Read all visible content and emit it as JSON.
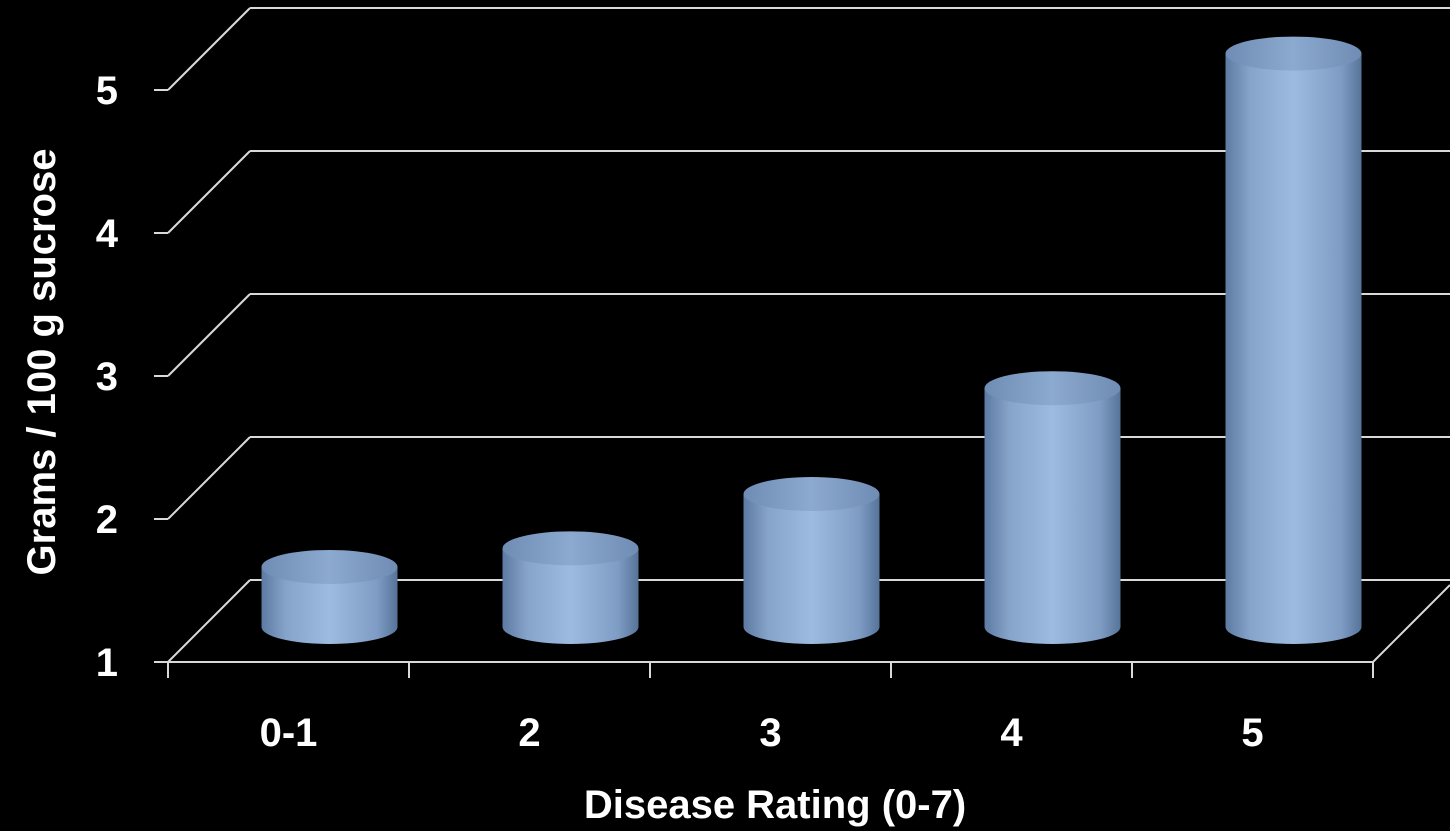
{
  "colors": {
    "background": "#000000",
    "bar_fill": "#95b3d7",
    "bar_top": "#7f9cc4",
    "grid": "#d9d9d9",
    "text": "#ffffff"
  },
  "chart_data": {
    "type": "bar",
    "style": "3d-cylinder",
    "categories": [
      "0-1",
      "2",
      "3",
      "4",
      "5"
    ],
    "values": [
      1.42,
      1.55,
      1.93,
      2.67,
      5.01
    ],
    "ylim": [
      1,
      5
    ],
    "yticks": [
      1,
      2,
      3,
      4,
      5
    ],
    "xlabel": "Disease Rating (0-7)",
    "ylabel": "Grams / 100 g sucrose",
    "grid": true,
    "legend": "none"
  }
}
